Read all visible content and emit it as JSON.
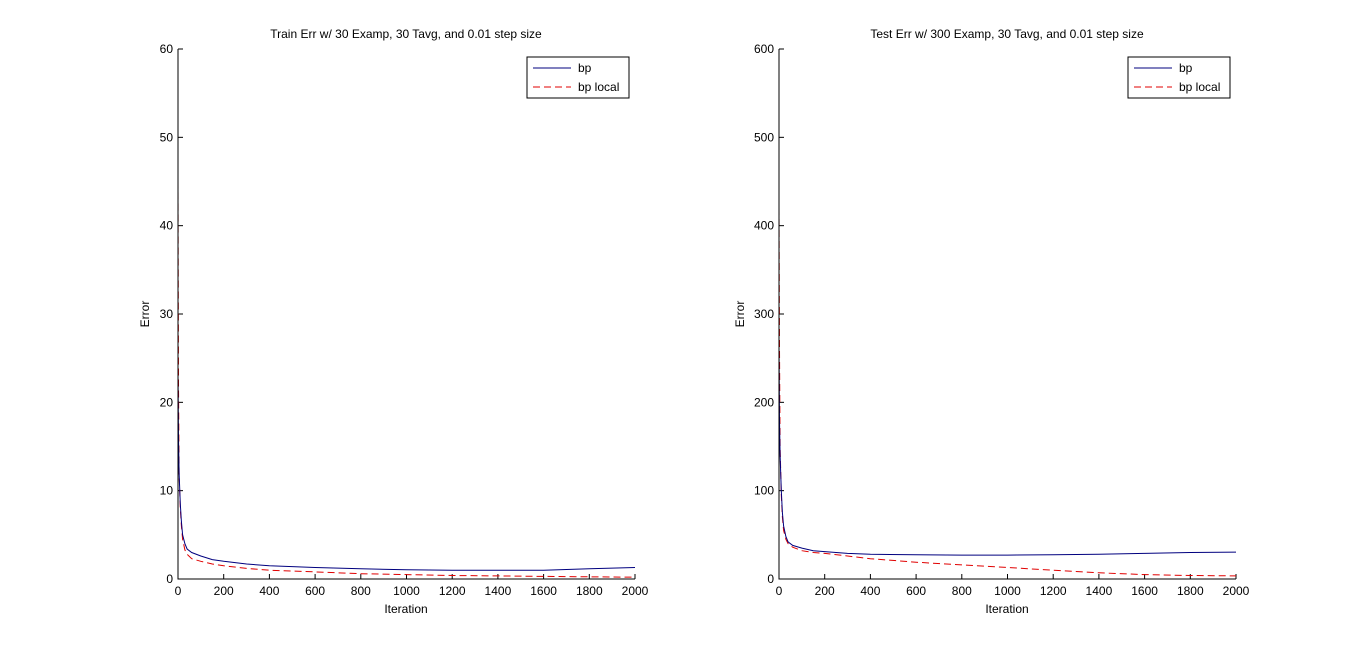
{
  "colors": {
    "bp": "#00007f",
    "bp_local": "#e00000",
    "background": "#ffffff",
    "axes": "#000000"
  },
  "chart_data": [
    {
      "type": "line",
      "title": "Train Err w/ 30 Examp, 30 Tavg, and 0.01 step size",
      "xlabel": "Iteration",
      "ylabel": "Error",
      "xlim": [
        0,
        2000
      ],
      "ylim": [
        0,
        60
      ],
      "xticks": [
        0,
        200,
        400,
        600,
        800,
        1000,
        1200,
        1400,
        1600,
        1800,
        2000
      ],
      "yticks": [
        0,
        10,
        20,
        30,
        40,
        50,
        60
      ],
      "grid": false,
      "legend": "top-right",
      "series": [
        {
          "name": "bp",
          "style": "solid",
          "color": "#00007f",
          "x": [
            0,
            2,
            5,
            10,
            15,
            20,
            30,
            40,
            60,
            100,
            150,
            200,
            300,
            400,
            600,
            800,
            1000,
            1200,
            1400,
            1600,
            1800,
            2000
          ],
          "y": [
            23.5,
            16,
            12,
            8.5,
            6.5,
            5,
            4,
            3.4,
            3,
            2.6,
            2.2,
            2.0,
            1.7,
            1.5,
            1.3,
            1.15,
            1.05,
            1.0,
            1.0,
            1.0,
            1.15,
            1.3
          ]
        },
        {
          "name": "bp local",
          "style": "dashed",
          "color": "#e00000",
          "x": [
            0,
            2,
            5,
            10,
            15,
            20,
            30,
            40,
            60,
            100,
            150,
            200,
            300,
            400,
            600,
            800,
            1000,
            1200,
            1400,
            1600,
            1800,
            2000
          ],
          "y": [
            45,
            22,
            12,
            8,
            6,
            4.5,
            3.3,
            2.8,
            2.3,
            2.0,
            1.7,
            1.5,
            1.2,
            1.0,
            0.8,
            0.6,
            0.5,
            0.4,
            0.35,
            0.3,
            0.25,
            0.2
          ]
        }
      ]
    },
    {
      "type": "line",
      "title": "Test Err w/ 300 Examp, 30 Tavg, and 0.01 step size",
      "xlabel": "Iteration",
      "ylabel": "Error",
      "xlim": [
        0,
        2000
      ],
      "ylim": [
        0,
        600
      ],
      "xticks": [
        0,
        200,
        400,
        600,
        800,
        1000,
        1200,
        1400,
        1600,
        1800,
        2000
      ],
      "yticks": [
        0,
        100,
        200,
        300,
        400,
        500,
        600
      ],
      "grid": false,
      "legend": "top-right",
      "series": [
        {
          "name": "bp",
          "style": "solid",
          "color": "#00007f",
          "x": [
            0,
            2,
            5,
            10,
            15,
            20,
            30,
            40,
            60,
            100,
            150,
            200,
            300,
            400,
            600,
            800,
            1000,
            1200,
            1400,
            1600,
            1800,
            2000
          ],
          "y": [
            265,
            180,
            140,
            100,
            75,
            60,
            48,
            42,
            38,
            35,
            32,
            31,
            29,
            28,
            27.5,
            27,
            27,
            27.5,
            28,
            29,
            30,
            30.5
          ]
        },
        {
          "name": "bp local",
          "style": "dashed",
          "color": "#e00000",
          "x": [
            0,
            2,
            5,
            10,
            15,
            20,
            30,
            40,
            60,
            100,
            150,
            200,
            300,
            400,
            600,
            800,
            1000,
            1200,
            1400,
            1600,
            1800,
            2000
          ],
          "y": [
            420,
            260,
            150,
            95,
            70,
            55,
            45,
            40,
            36,
            32,
            30,
            29,
            26,
            23,
            19,
            16,
            13,
            10,
            7,
            5,
            4,
            3.5
          ]
        }
      ]
    }
  ]
}
